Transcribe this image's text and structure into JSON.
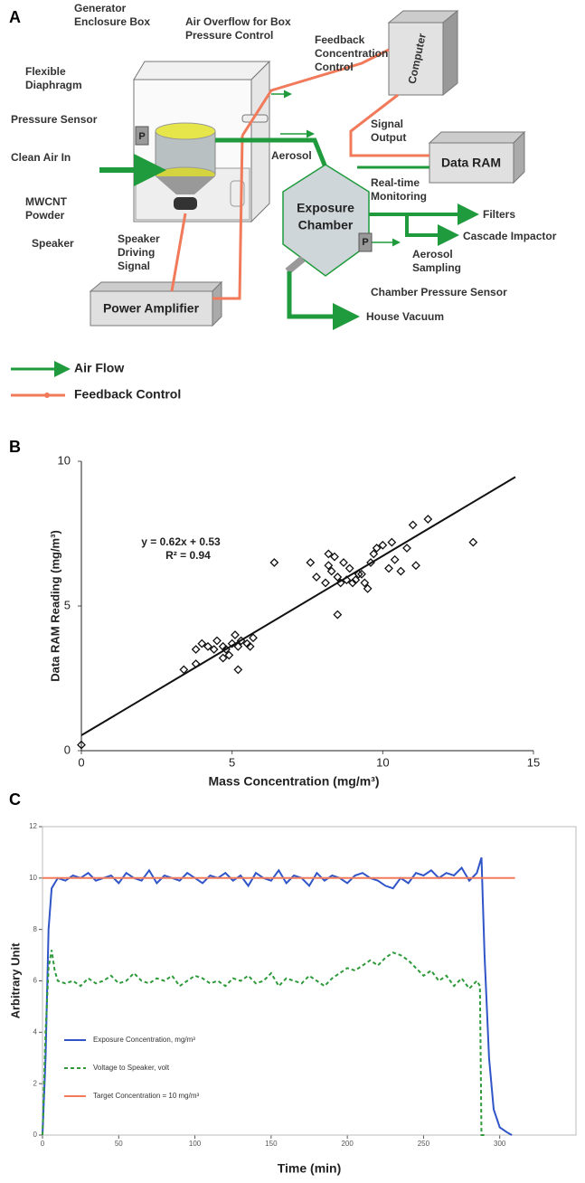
{
  "diagram": {
    "panel_label": "A",
    "labels": {
      "enclosure": [
        "Generator",
        "Enclosure Box"
      ],
      "overflow": [
        "Air Overflow for Box",
        "Pressure Control"
      ],
      "feedback_control": [
        "Feedback",
        "Concentration",
        "Control"
      ],
      "computer": [
        "Computer"
      ],
      "diaphragm": [
        "Flexible",
        "Diaphragm"
      ],
      "pressure_sensor": [
        "Pressure Sensor"
      ],
      "p1": [
        "P"
      ],
      "clean_air": [
        "Clean Air In"
      ],
      "signal_output": [
        "Signal",
        "Output"
      ],
      "aerosol": [
        "Aerosol"
      ],
      "data_ram": [
        "Data RAM"
      ],
      "powder": [
        "MWCNT",
        "Powder"
      ],
      "monitoring": [
        "Real-time",
        "Monitoring"
      ],
      "chamber": [
        "Exposure",
        "Chamber"
      ],
      "filters": [
        "Filters"
      ],
      "impactor": [
        "Cascade Impactor"
      ],
      "speaker": [
        "Speaker"
      ],
      "driving": [
        "Speaker",
        "Driving",
        "Signal"
      ],
      "sampling": [
        "Aerosol",
        "Sampling"
      ],
      "p2": [
        "P"
      ],
      "chamber_sensor": [
        "Chamber Pressure Sensor"
      ],
      "amplifier": [
        "Power Amplifier"
      ],
      "vacuum": [
        "House Vacuum"
      ]
    },
    "legend": [
      "Air Flow",
      "Feedback Control"
    ]
  },
  "chart_data": [
    {
      "type": "scatter",
      "panel_label": "B",
      "xlabel": "Mass Concentration (mg/m³)",
      "ylabel": "Data RAM Reading (mg/m³)",
      "annotations": [
        "y = 0.62x + 0.53",
        "R² = 0.94"
      ],
      "x": [
        0,
        3.4,
        3.8,
        3.8,
        4.0,
        4.2,
        4.4,
        4.5,
        4.7,
        4.9,
        4.8,
        5.0,
        5.1,
        5.2,
        5.3,
        5.2,
        5.5,
        5.7,
        5.6,
        4.7,
        6.4,
        7.6,
        7.8,
        8.1,
        8.2,
        8.3,
        8.4,
        8.5,
        8.5,
        8.6,
        8.7,
        8.8,
        8.9,
        9.0,
        9.1,
        9.3,
        9.4,
        9.5,
        9.6,
        9.7,
        9.8,
        10.0,
        10.2,
        10.3,
        10.4,
        10.6,
        10.8,
        11.0,
        11.1,
        11.5,
        13.0,
        8.2,
        9.2
      ],
      "values": [
        0.2,
        2.8,
        3.0,
        3.5,
        3.7,
        3.6,
        3.5,
        3.8,
        3.6,
        3.3,
        3.5,
        3.7,
        4.0,
        3.6,
        3.8,
        2.8,
        3.7,
        3.9,
        3.6,
        3.2,
        6.5,
        6.5,
        6.0,
        5.8,
        6.8,
        6.2,
        6.7,
        6.0,
        4.7,
        5.8,
        6.5,
        5.9,
        6.3,
        5.8,
        5.9,
        6.1,
        5.8,
        5.6,
        6.5,
        6.8,
        7.0,
        7.1,
        6.3,
        7.2,
        6.6,
        6.2,
        7.0,
        7.8,
        6.4,
        8.0,
        7.2,
        6.4,
        6.1
      ],
      "trendline": {
        "x": [
          0,
          14.4
        ],
        "y": [
          0.53,
          9.458
        ]
      },
      "xlim": [
        0,
        15
      ],
      "ylim": [
        0,
        10
      ],
      "xticks": [
        0,
        5,
        10,
        15
      ],
      "yticks": [
        0,
        5,
        10
      ],
      "color": "#111111"
    },
    {
      "type": "line",
      "panel_label": "C",
      "xlabel": "Time (min)",
      "ylabel": "Arbitrary Unit",
      "xlim": [
        0,
        350
      ],
      "ylim": [
        0,
        12
      ],
      "xticks": [
        0,
        50,
        100,
        150,
        200,
        250,
        300
      ],
      "yticks": [
        0,
        2,
        4,
        6,
        8,
        10,
        12
      ],
      "legend": "lower left",
      "series": [
        {
          "name": "Exposure Concentration, mg/m³",
          "color": "#2f55c8",
          "style": "solid",
          "x": [
            0,
            2,
            4,
            6,
            8,
            10,
            15,
            20,
            25,
            30,
            35,
            40,
            45,
            50,
            55,
            60,
            65,
            70,
            75,
            80,
            85,
            90,
            95,
            100,
            105,
            110,
            115,
            120,
            125,
            130,
            135,
            140,
            145,
            150,
            155,
            160,
            165,
            170,
            175,
            180,
            185,
            190,
            195,
            200,
            205,
            210,
            215,
            220,
            225,
            230,
            235,
            240,
            245,
            250,
            255,
            260,
            265,
            270,
            275,
            280,
            285,
            288,
            290,
            293,
            296,
            300,
            305,
            308
          ],
          "values": [
            0,
            3,
            8,
            9.6,
            9.8,
            10.0,
            9.9,
            10.1,
            10.0,
            10.2,
            9.9,
            10.0,
            10.1,
            9.8,
            10.2,
            10.0,
            9.9,
            10.3,
            9.8,
            10.1,
            10.0,
            9.9,
            10.2,
            10.0,
            9.8,
            10.1,
            10.0,
            10.2,
            9.9,
            10.1,
            9.7,
            10.2,
            10.0,
            9.9,
            10.3,
            9.8,
            10.1,
            10.0,
            9.7,
            10.2,
            9.9,
            10.1,
            10.0,
            9.8,
            10.1,
            10.2,
            10.0,
            9.9,
            9.7,
            9.6,
            10.0,
            9.8,
            10.2,
            10.1,
            10.3,
            10.0,
            10.2,
            10.1,
            10.4,
            9.9,
            10.2,
            10.8,
            7,
            3,
            1,
            0.3,
            0.1,
            0
          ]
        },
        {
          "name": "Voltage to Speaker, volt",
          "color": "#2e9a3a",
          "style": "dashed",
          "x": [
            0,
            2,
            4,
            6,
            8,
            10,
            15,
            20,
            25,
            30,
            35,
            40,
            45,
            50,
            55,
            60,
            65,
            70,
            75,
            80,
            85,
            90,
            95,
            100,
            105,
            110,
            115,
            120,
            125,
            130,
            135,
            140,
            145,
            150,
            155,
            160,
            165,
            170,
            175,
            180,
            185,
            190,
            195,
            200,
            205,
            210,
            215,
            220,
            225,
            230,
            235,
            240,
            245,
            250,
            255,
            260,
            265,
            270,
            275,
            280,
            285,
            287,
            288,
            290
          ],
          "values": [
            0,
            4,
            6.5,
            7.2,
            6.4,
            6.0,
            5.9,
            6.0,
            5.8,
            6.1,
            5.9,
            6.0,
            6.2,
            5.9,
            6.0,
            6.3,
            6.0,
            5.9,
            6.1,
            6.0,
            6.2,
            5.8,
            6.0,
            6.2,
            6.1,
            5.9,
            6.0,
            5.8,
            6.1,
            6.0,
            6.2,
            5.9,
            6.0,
            6.3,
            5.8,
            6.1,
            6.0,
            5.9,
            6.2,
            6.0,
            5.8,
            6.1,
            6.3,
            6.5,
            6.4,
            6.6,
            6.8,
            6.6,
            6.9,
            7.1,
            7.0,
            6.8,
            6.5,
            6.2,
            6.4,
            6.0,
            6.2,
            5.8,
            6.1,
            5.7,
            6.0,
            5.8,
            0,
            0
          ]
        },
        {
          "name": "Target Concentration = 10 mg/m³",
          "color": "#f07a5a",
          "style": "solid",
          "x": [
            0,
            310
          ],
          "values": [
            10,
            10
          ]
        }
      ]
    }
  ]
}
